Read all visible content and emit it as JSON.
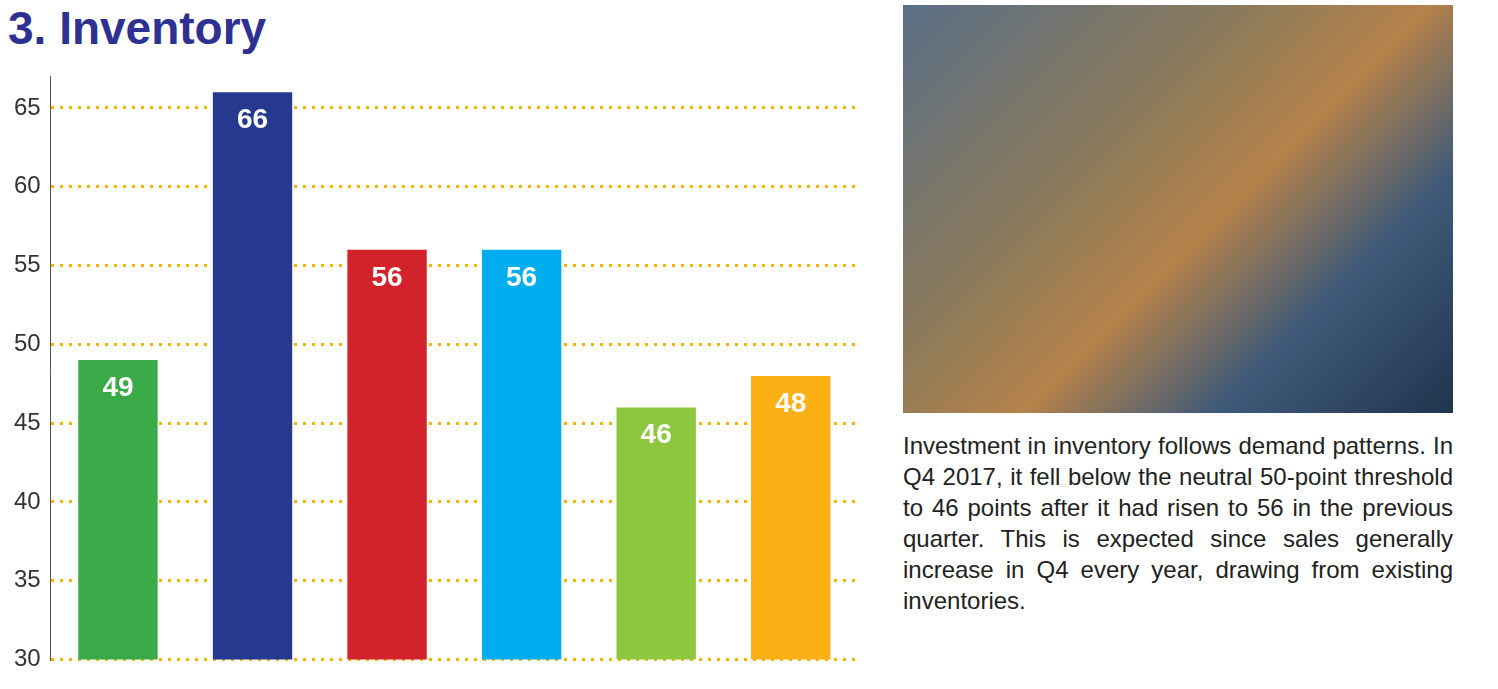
{
  "chart_data": {
    "type": "bar",
    "title": "3. Inventory",
    "categories": [
      null,
      null,
      null,
      null,
      null,
      null
    ],
    "values": [
      49,
      66,
      56,
      56,
      46,
      48
    ],
    "colors": [
      "#3aaa48",
      "#253a8e",
      "#d2232a",
      "#00aeef",
      "#8dc63f",
      "#fbb116"
    ],
    "ylim": [
      30,
      67
    ],
    "yticks": [
      30,
      35,
      40,
      45,
      50,
      55,
      60,
      65
    ],
    "grid": true,
    "data_labels": true,
    "tick_labels": "y",
    "annotations": [
      "Investment in inventory follows demand patterns. In Q4 2017, it fell below the neutral 50-point threshold to 46 points after it had risen to 56 in the previous quarter. This is expected since sales generally increase in Q4 every year, drawing from existing inventories."
    ]
  }
}
